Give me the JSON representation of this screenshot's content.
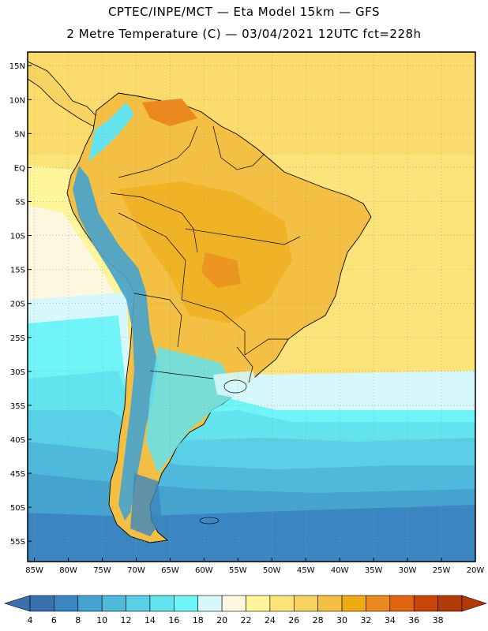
{
  "header": {
    "line1": "CPTEC/INPE/MCT —  Eta Model 15km — GFS",
    "line2": "2 Metre Temperature (C) — 03/04/2021 12UTC fct=228h"
  },
  "map": {
    "lat_labels": [
      "15N",
      "10N",
      "5N",
      "EQ",
      "5S",
      "10S",
      "15S",
      "20S",
      "25S",
      "30S",
      "35S",
      "40S",
      "45S",
      "50S",
      "55S"
    ],
    "lat_values": [
      15,
      10,
      5,
      0,
      -5,
      -10,
      -15,
      -20,
      -25,
      -30,
      -35,
      -40,
      -45,
      -50,
      -55
    ],
    "lon_labels": [
      "85W",
      "80W",
      "75W",
      "70W",
      "65W",
      "60W",
      "55W",
      "50W",
      "45W",
      "40W",
      "35W",
      "30W",
      "25W",
      "20W"
    ],
    "lon_values": [
      -85,
      -80,
      -75,
      -70,
      -65,
      -60,
      -55,
      -50,
      -45,
      -40,
      -35,
      -30,
      -25,
      -20
    ],
    "extent": {
      "lon_min": -86,
      "lon_max": -20,
      "lat_min": -58,
      "lat_max": 17
    }
  },
  "colorbar": {
    "ticks": [
      "4",
      "6",
      "8",
      "10",
      "12",
      "14",
      "16",
      "18",
      "20",
      "22",
      "24",
      "26",
      "28",
      "30",
      "32",
      "34",
      "36",
      "38"
    ],
    "colors": [
      "#3a6fb0",
      "#3b86c1",
      "#45a3cf",
      "#4fb9dc",
      "#5ad0e6",
      "#62e3ee",
      "#6ff5f7",
      "#d6f7fb",
      "#fff7e0",
      "#fff59a",
      "#fde47a",
      "#f8d361",
      "#f3c043",
      "#f0aa14",
      "#e9891f",
      "#e06510",
      "#c94508",
      "#b13a08"
    ]
  }
}
